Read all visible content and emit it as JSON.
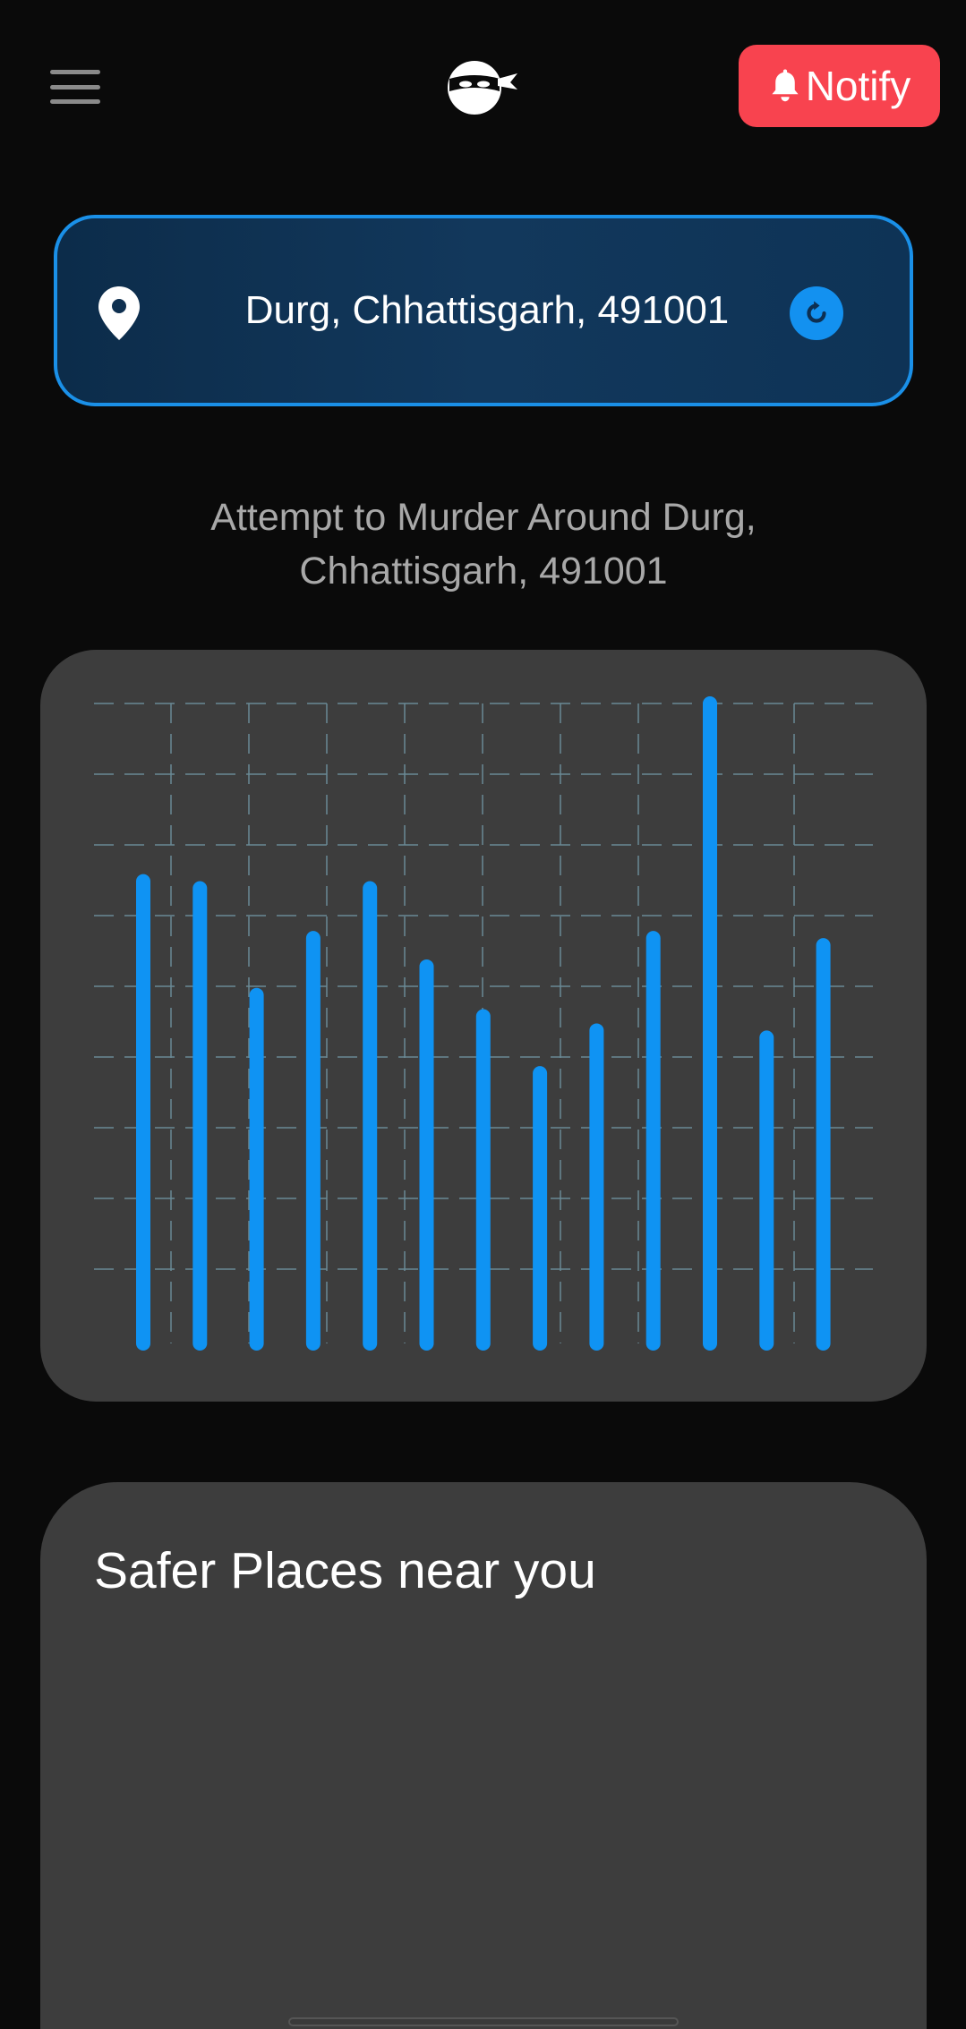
{
  "header": {
    "menu_icon": "hamburger-menu-icon",
    "logo_icon": "ninja-logo-icon",
    "notify_label": "Notify",
    "notify_icon": "bell-icon",
    "notify_color": "#f8434f"
  },
  "location": {
    "text": "Durg, Chhattisgarh, 491001",
    "pin_icon": "location-pin-icon",
    "refresh_icon": "refresh-icon",
    "accent_color": "#1a90e8"
  },
  "subtitle": "Attempt to Murder Around Durg, Chhattisgarh, 491001",
  "chart_data": {
    "type": "bar",
    "categories": [
      "",
      "",
      "",
      "",
      "",
      "",
      "",
      "",
      "",
      "",
      "",
      "",
      ""
    ],
    "values": [
      65,
      64,
      49,
      57,
      64,
      53,
      46,
      38,
      44,
      57,
      90,
      43,
      56
    ],
    "ylim": [
      0,
      90
    ],
    "grid": true,
    "bar_color": "#0f93f3"
  },
  "places": {
    "title": "Safer Places near you"
  }
}
